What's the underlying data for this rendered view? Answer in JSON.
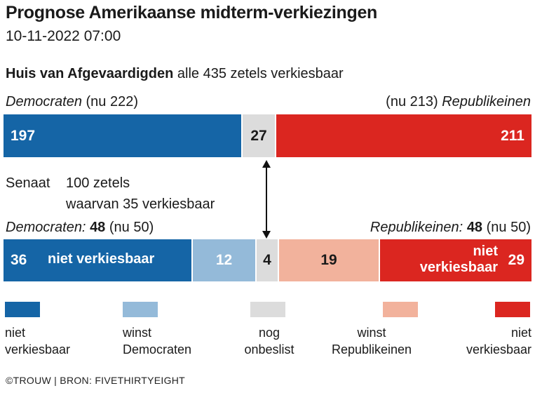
{
  "title": "Prognose Amerikaanse midterm-verkiezingen",
  "subtitle": "10-11-2022 07:00",
  "house": {
    "heading": "Huis van Afgevaardigden",
    "detail": "alle 435 zetels verkiesbaar",
    "dem_label": "Democraten",
    "dem_current": "(nu 222)",
    "rep_label": "Republikeinen",
    "rep_current": "(nu 213)"
  },
  "senate": {
    "heading": "Senaat",
    "detail_line1": "100 zetels",
    "detail_line2": "waarvan 35 verkiesbaar",
    "dem_label": "Democraten:",
    "dem_total": "48",
    "dem_current": "(nu 50)",
    "rep_label": "Republikeinen:",
    "rep_total": "48",
    "rep_current": "(nu 50)",
    "seg_text_dem_safe": "niet verkiesbaar",
    "seg_text_rep_safe_1": "niet",
    "seg_text_rep_safe_2": "verkiesbaar"
  },
  "colors": {
    "dem_safe": "#1565a6",
    "dem_win": "#94bad9",
    "undecided": "#dcdcdc",
    "rep_win": "#f2b29c",
    "rep_safe": "#db2620"
  },
  "chart_data": [
    {
      "type": "bar",
      "orientation": "horizontal-stacked",
      "name": "Huis van Afgevaardigden",
      "total": 435,
      "segments": [
        {
          "key": "dem",
          "label": "Democraten",
          "value": 197,
          "color": "#1565a6"
        },
        {
          "key": "undecided",
          "label": "nog onbeslist",
          "value": 27,
          "color": "#dcdcdc"
        },
        {
          "key": "rep",
          "label": "Republikeinen",
          "value": 211,
          "color": "#db2620"
        }
      ]
    },
    {
      "type": "bar",
      "orientation": "horizontal-stacked",
      "name": "Senaat",
      "total": 100,
      "segments": [
        {
          "key": "dem_safe",
          "label": "niet verkiesbaar",
          "value": 36,
          "color": "#1565a6"
        },
        {
          "key": "dem_win",
          "label": "winst Democraten",
          "value": 12,
          "color": "#94bad9"
        },
        {
          "key": "undecided",
          "label": "nog onbeslist",
          "value": 4,
          "color": "#dcdcdc"
        },
        {
          "key": "rep_win",
          "label": "winst Republikeinen",
          "value": 19,
          "color": "#f2b29c"
        },
        {
          "key": "rep_safe",
          "label": "niet verkiesbaar",
          "value": 29,
          "color": "#db2620"
        }
      ]
    }
  ],
  "legend": [
    {
      "line1": "niet",
      "line2": "verkiesbaar",
      "color": "#1565a6"
    },
    {
      "line1": "winst",
      "line2": "Democraten",
      "color": "#94bad9"
    },
    {
      "line1": "nog",
      "line2": "onbeslist",
      "color": "#dcdcdc"
    },
    {
      "line1": "winst",
      "line2": "Republikeinen",
      "color": "#f2b29c"
    },
    {
      "line1": "niet",
      "line2": "verkiesbaar",
      "color": "#db2620"
    }
  ],
  "source": "©TROUW | BRON: FIVETHIRTYEIGHT"
}
